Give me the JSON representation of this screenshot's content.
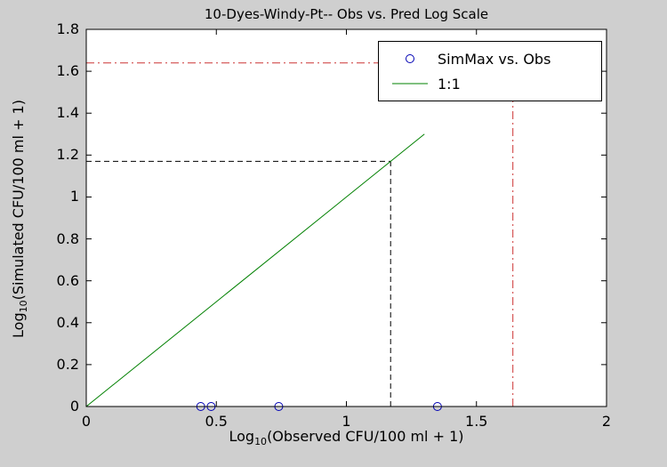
{
  "figure": {
    "background": "#cfcfcf",
    "plot_background": "#ffffff",
    "axis_color": "#000000"
  },
  "chart_data": {
    "type": "scatter",
    "title": "10-Dyes-Windy-Pt-- Obs vs. Pred Log Scale",
    "xlabel": "Log10(Observed CFU/100 ml + 1)",
    "ylabel": "Log10(Simulated CFU/100 ml + 1)",
    "xlabel_parts": {
      "prefix": "Log",
      "sub": "10",
      "rest": "(Observed CFU/100 ml + 1)"
    },
    "ylabel_parts": {
      "prefix": "Log",
      "sub": "10",
      "rest": "(Simulated CFU/100 ml + 1)"
    },
    "xlim": [
      0,
      2
    ],
    "ylim": [
      0,
      1.8
    ],
    "grid": false,
    "xticks": [
      0,
      0.5,
      1,
      1.5,
      2
    ],
    "xtick_labels": [
      "0",
      "0.5",
      "1",
      "1.5",
      "2"
    ],
    "yticks": [
      0,
      0.2,
      0.4,
      0.6,
      0.8,
      1,
      1.2,
      1.4,
      1.6,
      1.8
    ],
    "ytick_labels": [
      "0",
      "0.2",
      "0.4",
      "0.6",
      "0.8",
      "1",
      "1.2",
      "1.4",
      "1.6",
      "1.8"
    ],
    "series": [
      {
        "name": "SimMax vs. Obs",
        "type": "scatter",
        "marker": "circle",
        "color": "#0000b4",
        "points": [
          [
            0.44,
            0
          ],
          [
            0.48,
            0
          ],
          [
            0.74,
            0
          ],
          [
            1.35,
            0
          ]
        ]
      },
      {
        "name": "1:1",
        "type": "line",
        "color": "#008000",
        "points": [
          [
            0,
            0
          ],
          [
            1.3,
            1.3
          ]
        ]
      }
    ],
    "reference_lines": [
      {
        "name": "sim-threshold-horizontal",
        "style": "dashdot",
        "color": "#cc3333",
        "x": [
          0,
          1.64
        ],
        "y": [
          1.64,
          1.64
        ]
      },
      {
        "name": "obs-threshold-vertical",
        "style": "dashdot",
        "color": "#cc3333",
        "x": [
          1.64,
          1.64
        ],
        "y": [
          0,
          1.64
        ]
      },
      {
        "name": "sim-crossing-horizontal",
        "style": "dashed",
        "color": "#000000",
        "x": [
          0,
          1.17
        ],
        "y": [
          1.17,
          1.17
        ]
      },
      {
        "name": "obs-crossing-vertical",
        "style": "dashed",
        "color": "#000000",
        "x": [
          1.17,
          1.17
        ],
        "y": [
          0,
          1.17
        ]
      }
    ],
    "legend": {
      "position": "top-right",
      "entries": [
        {
          "label": "SimMax vs. Obs",
          "marker": "circle",
          "color": "#0000b4"
        },
        {
          "label": "1:1",
          "marker": "line",
          "color": "#008000"
        }
      ]
    }
  }
}
